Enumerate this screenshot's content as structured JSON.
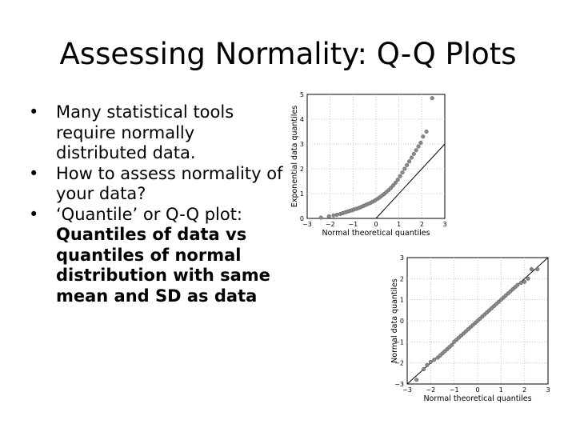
{
  "slide": {
    "title": "Assessing Normality: Q-Q Plots",
    "bullets": [
      {
        "text": "Many statistical tools require normally distributed data."
      },
      {
        "text": "How to assess normality of your data?"
      },
      {
        "text": "‘Quantile’ or Q-Q plot:",
        "bold": "Quantiles of data vs quantiles of normal distribution with same mean and SD as data"
      }
    ]
  },
  "chart_data": [
    {
      "type": "scatter",
      "xlabel": "Normal theoretical quantiles",
      "ylabel": "Exponential data quantiles",
      "xlim": [
        -3,
        3
      ],
      "ylim": [
        0,
        5
      ],
      "xticks": [
        "−3",
        "−2",
        "−1",
        "0",
        "1",
        "2",
        "3"
      ],
      "yticks": [
        "0",
        "1",
        "2",
        "3",
        "4",
        "5"
      ],
      "grid": true,
      "reference_line": [
        [
          0,
          0
        ],
        [
          3,
          3
        ]
      ],
      "point_color": "#8a8a8a",
      "x": [
        -2.4,
        -2.05,
        -1.85,
        -1.7,
        -1.55,
        -1.45,
        -1.35,
        -1.25,
        -1.15,
        -1.05,
        -0.95,
        -0.85,
        -0.75,
        -0.65,
        -0.55,
        -0.45,
        -0.35,
        -0.25,
        -0.15,
        -0.05,
        0.05,
        0.15,
        0.25,
        0.35,
        0.45,
        0.55,
        0.65,
        0.75,
        0.85,
        0.95,
        1.05,
        1.15,
        1.25,
        1.35,
        1.45,
        1.55,
        1.65,
        1.75,
        1.85,
        1.95,
        2.05,
        2.2,
        2.45
      ],
      "y": [
        0.03,
        0.08,
        0.12,
        0.15,
        0.18,
        0.21,
        0.24,
        0.27,
        0.3,
        0.33,
        0.36,
        0.39,
        0.42,
        0.46,
        0.5,
        0.54,
        0.58,
        0.62,
        0.67,
        0.72,
        0.78,
        0.84,
        0.91,
        0.98,
        1.06,
        1.14,
        1.23,
        1.33,
        1.44,
        1.56,
        1.7,
        1.85,
        2.0,
        2.15,
        2.3,
        2.45,
        2.6,
        2.75,
        2.9,
        3.05,
        3.3,
        3.5,
        4.85
      ]
    },
    {
      "type": "scatter",
      "xlabel": "Normal theoretical quantiles",
      "ylabel": "Normal data quantiles",
      "xlim": [
        -3,
        3
      ],
      "ylim": [
        -3,
        3
      ],
      "xticks": [
        "−3",
        "−2",
        "−1",
        "0",
        "1",
        "2",
        "3"
      ],
      "yticks": [
        "−3",
        "−2",
        "−1",
        "0",
        "1",
        "2",
        "3"
      ],
      "grid": true,
      "reference_line": [
        [
          -3,
          -3
        ],
        [
          3,
          3
        ]
      ],
      "point_color": "#8a8a8a",
      "x": [
        -2.6,
        -2.3,
        -2.15,
        -2.0,
        -1.85,
        -1.7,
        -1.6,
        -1.5,
        -1.4,
        -1.3,
        -1.2,
        -1.1,
        -1.0,
        -0.9,
        -0.8,
        -0.7,
        -0.6,
        -0.5,
        -0.4,
        -0.3,
        -0.2,
        -0.1,
        0.0,
        0.1,
        0.2,
        0.3,
        0.4,
        0.5,
        0.6,
        0.7,
        0.8,
        0.9,
        1.0,
        1.1,
        1.2,
        1.3,
        1.4,
        1.5,
        1.6,
        1.7,
        1.85,
        2.0,
        2.15,
        2.3,
        2.55
      ],
      "y": [
        -2.8,
        -2.3,
        -2.1,
        -1.95,
        -1.85,
        -1.75,
        -1.65,
        -1.55,
        -1.45,
        -1.35,
        -1.25,
        -1.15,
        -1.0,
        -0.9,
        -0.8,
        -0.7,
        -0.6,
        -0.5,
        -0.4,
        -0.3,
        -0.2,
        -0.1,
        0.0,
        0.1,
        0.2,
        0.3,
        0.4,
        0.5,
        0.6,
        0.7,
        0.8,
        0.9,
        1.0,
        1.1,
        1.2,
        1.3,
        1.4,
        1.5,
        1.6,
        1.7,
        1.8,
        1.85,
        2.0,
        2.45,
        2.45
      ]
    }
  ]
}
